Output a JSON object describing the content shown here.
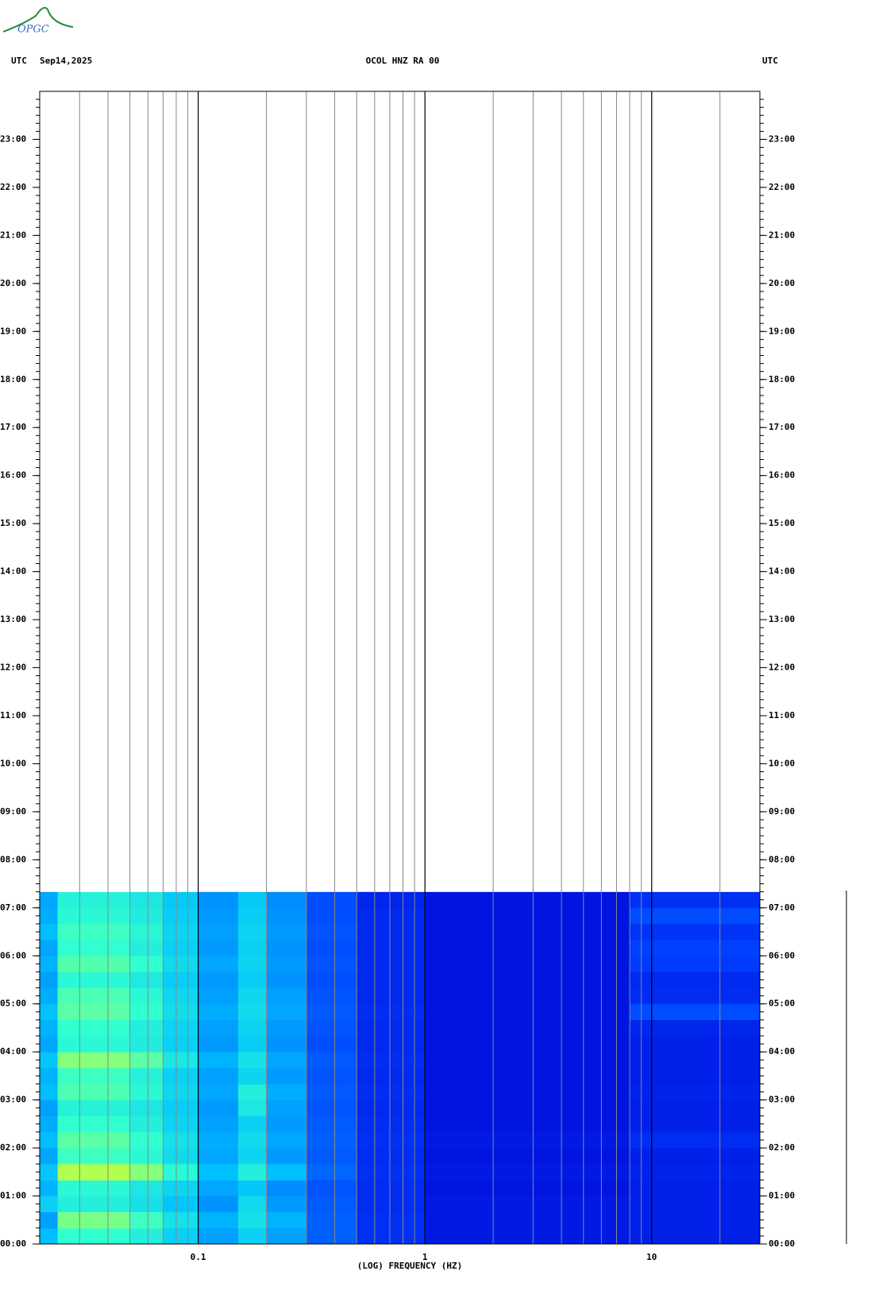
{
  "header": {
    "logo": "OPGC"
  },
  "chart_data": {
    "type": "spectrogram",
    "title": "OCOL HNZ RA 00",
    "left_label": "UTC",
    "date": "Sep14,2025",
    "right_label": "UTC",
    "xlabel": "(LOG) FREQUENCY (HZ)",
    "xscale": "log",
    "xlim": [
      0.02,
      30
    ],
    "xticks": [
      {
        "value": 0.1,
        "label": "0.1"
      },
      1,
      10
    ],
    "xgrid": [
      0.03,
      0.04,
      0.05,
      0.06,
      0.07,
      0.08,
      0.09,
      0.2,
      0.3,
      0.4,
      0.5,
      0.6,
      0.7,
      0.8,
      0.9,
      2,
      3,
      4,
      5,
      6,
      7,
      8,
      9,
      20
    ],
    "ylim": [
      0,
      24
    ],
    "yticks": [
      {
        "value": 0,
        "label": "00:00"
      },
      {
        "value": 1,
        "label": "01:00"
      },
      {
        "value": 2,
        "label": "02:00"
      },
      {
        "value": 3,
        "label": "03:00"
      },
      {
        "value": 4,
        "label": "04:00"
      },
      {
        "value": 5,
        "label": "05:00"
      },
      {
        "value": 6,
        "label": "06:00"
      },
      {
        "value": 7,
        "label": "07:00"
      },
      {
        "value": 8,
        "label": "08:00"
      },
      {
        "value": 9,
        "label": "09:00"
      },
      {
        "value": 10,
        "label": "10:00"
      },
      {
        "value": 11,
        "label": "11:00"
      },
      {
        "value": 12,
        "label": "12:00"
      },
      {
        "value": 13,
        "label": "13:00"
      },
      {
        "value": 14,
        "label": "14:00"
      },
      {
        "value": 15,
        "label": "15:00"
      },
      {
        "value": 16,
        "label": "16:00"
      },
      {
        "value": 17,
        "label": "17:00"
      },
      {
        "value": 18,
        "label": "18:00"
      },
      {
        "value": 19,
        "label": "19:00"
      },
      {
        "value": 20,
        "label": "20:00"
      },
      {
        "value": 21,
        "label": "21:00"
      },
      {
        "value": 22,
        "label": "22:00"
      },
      {
        "value": 23,
        "label": "23:00"
      }
    ],
    "x_bins": [
      0.02,
      0.024,
      0.05,
      0.07,
      0.1,
      0.15,
      0.2,
      0.3,
      0.5,
      1,
      8,
      30
    ],
    "y_bins": [
      0,
      0.33,
      0.67,
      1,
      1.33,
      1.67,
      2,
      2.33,
      2.67,
      3,
      3.33,
      3.67,
      4,
      4.33,
      4.67,
      5,
      5.33,
      5.67,
      6,
      6.33,
      6.67,
      7,
      7.33
    ],
    "colorscale": [
      "#0000d0",
      "#0040ff",
      "#00c0ff",
      "#30ffd0",
      "#c0ff40",
      "#ffff00"
    ],
    "values": [
      [
        0.4,
        0.6,
        0.55,
        0.45,
        0.35,
        0.45,
        0.35,
        0.25,
        0.15,
        0.08,
        0.1
      ],
      [
        0.35,
        0.7,
        0.62,
        0.5,
        0.38,
        0.5,
        0.38,
        0.25,
        0.15,
        0.08,
        0.1
      ],
      [
        0.45,
        0.55,
        0.5,
        0.42,
        0.33,
        0.48,
        0.34,
        0.24,
        0.14,
        0.08,
        0.1
      ],
      [
        0.38,
        0.58,
        0.52,
        0.46,
        0.36,
        0.42,
        0.32,
        0.23,
        0.14,
        0.07,
        0.1
      ],
      [
        0.42,
        0.78,
        0.72,
        0.58,
        0.4,
        0.55,
        0.4,
        0.26,
        0.15,
        0.08,
        0.11
      ],
      [
        0.36,
        0.62,
        0.58,
        0.48,
        0.36,
        0.46,
        0.34,
        0.24,
        0.14,
        0.07,
        0.1
      ],
      [
        0.4,
        0.66,
        0.6,
        0.5,
        0.37,
        0.48,
        0.36,
        0.25,
        0.15,
        0.08,
        0.14
      ],
      [
        0.37,
        0.6,
        0.55,
        0.46,
        0.35,
        0.45,
        0.34,
        0.24,
        0.14,
        0.07,
        0.1
      ],
      [
        0.35,
        0.56,
        0.52,
        0.44,
        0.34,
        0.52,
        0.35,
        0.23,
        0.13,
        0.07,
        0.1
      ],
      [
        0.4,
        0.64,
        0.58,
        0.47,
        0.36,
        0.55,
        0.37,
        0.24,
        0.14,
        0.07,
        0.11
      ],
      [
        0.38,
        0.62,
        0.56,
        0.45,
        0.35,
        0.46,
        0.34,
        0.23,
        0.13,
        0.07,
        0.1
      ],
      [
        0.42,
        0.72,
        0.66,
        0.52,
        0.38,
        0.5,
        0.36,
        0.24,
        0.14,
        0.07,
        0.1
      ],
      [
        0.36,
        0.58,
        0.54,
        0.45,
        0.34,
        0.44,
        0.33,
        0.22,
        0.13,
        0.07,
        0.1
      ],
      [
        0.38,
        0.6,
        0.55,
        0.46,
        0.35,
        0.46,
        0.34,
        0.23,
        0.13,
        0.07,
        0.12
      ],
      [
        0.41,
        0.66,
        0.6,
        0.49,
        0.37,
        0.48,
        0.36,
        0.24,
        0.14,
        0.07,
        0.22
      ],
      [
        0.37,
        0.64,
        0.58,
        0.47,
        0.35,
        0.47,
        0.35,
        0.23,
        0.13,
        0.07,
        0.14
      ],
      [
        0.35,
        0.58,
        0.53,
        0.44,
        0.34,
        0.44,
        0.33,
        0.22,
        0.13,
        0.07,
        0.13
      ],
      [
        0.38,
        0.65,
        0.6,
        0.48,
        0.36,
        0.46,
        0.34,
        0.23,
        0.13,
        0.07,
        0.18
      ],
      [
        0.36,
        0.6,
        0.55,
        0.45,
        0.34,
        0.45,
        0.33,
        0.22,
        0.13,
        0.07,
        0.2
      ],
      [
        0.4,
        0.62,
        0.57,
        0.46,
        0.35,
        0.46,
        0.34,
        0.23,
        0.13,
        0.07,
        0.16
      ],
      [
        0.37,
        0.58,
        0.54,
        0.44,
        0.34,
        0.44,
        0.33,
        0.22,
        0.13,
        0.07,
        0.22
      ],
      [
        0.36,
        0.56,
        0.52,
        0.43,
        0.33,
        0.43,
        0.32,
        0.22,
        0.12,
        0.07,
        0.15
      ]
    ]
  }
}
